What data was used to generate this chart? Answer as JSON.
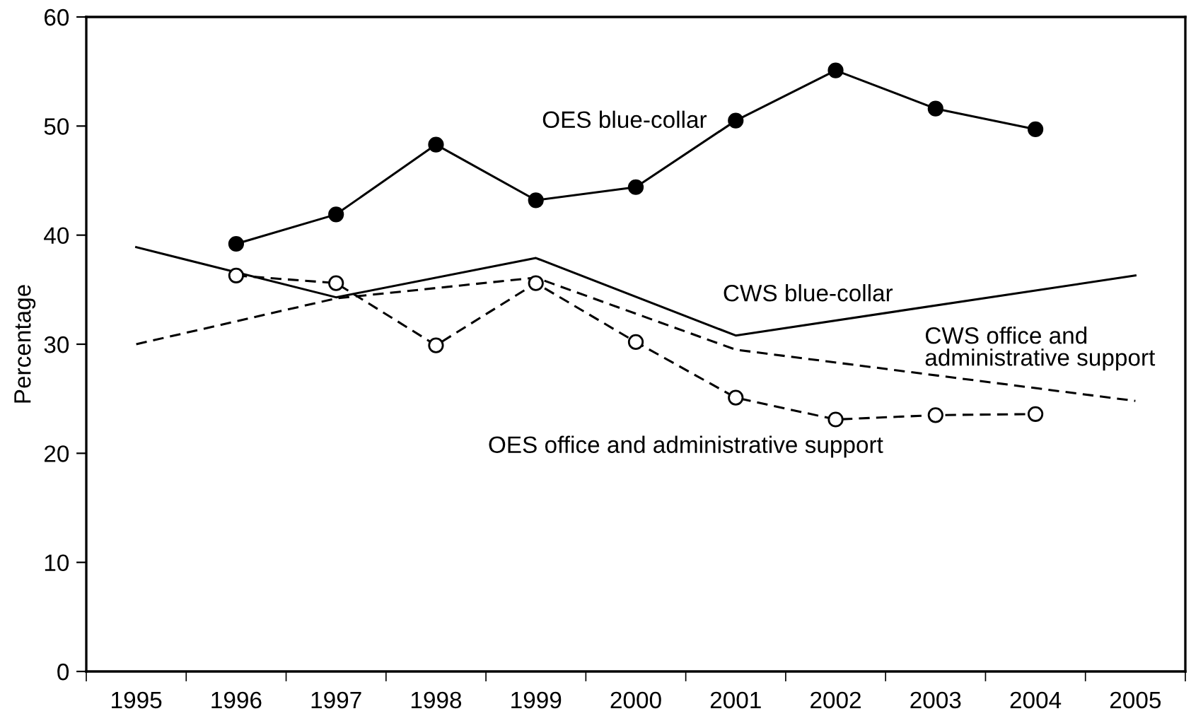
{
  "chart_data": {
    "type": "line",
    "ylabel": "Percentage",
    "xlim": [
      1994.5,
      2005.5
    ],
    "ylim": [
      0,
      60
    ],
    "yticks": [
      0,
      10,
      20,
      30,
      40,
      50,
      60
    ],
    "xticks": [
      {
        "value": 1994.5,
        "label": null
      },
      1995,
      {
        "value": 1995.5,
        "label": null
      },
      1996,
      {
        "value": 1996.5,
        "label": null
      },
      1997,
      {
        "value": 1997.5,
        "label": null
      },
      1998,
      {
        "value": 1998.5,
        "label": null
      },
      1999,
      {
        "value": 1999.5,
        "label": null
      },
      2000,
      {
        "value": 2000.5,
        "label": null
      },
      2001,
      {
        "value": 2001.5,
        "label": null
      },
      2002,
      {
        "value": 2002.5,
        "label": null
      },
      2003,
      {
        "value": 2003.5,
        "label": null
      },
      2004,
      {
        "value": 2004.5,
        "label": null
      },
      2005,
      {
        "value": 2005.5,
        "label": null
      }
    ],
    "grid": false,
    "legend": false,
    "series": [
      {
        "name": "OES blue-collar",
        "color": "#000000",
        "marker": "circle",
        "line_style": "solid",
        "x": [
          1996,
          1997,
          1998,
          1999,
          2000,
          2001,
          2002,
          2003,
          2004
        ],
        "values": [
          39.2,
          41.9,
          48.3,
          43.2,
          44.4,
          50.5,
          55.1,
          51.6,
          49.7
        ]
      },
      {
        "name": "CWS blue-collar",
        "color": "#000000",
        "marker": "none",
        "line_style": "solid",
        "x": [
          1995,
          1997,
          1999,
          2001,
          2005
        ],
        "values": [
          38.9,
          34.3,
          37.9,
          30.8,
          36.3
        ]
      },
      {
        "name": "CWS office and\nadministrative support",
        "color": "#000000",
        "marker": "none",
        "line_style": "dashed",
        "x": [
          1995,
          1997,
          1999,
          2001,
          2005
        ],
        "values": [
          30.0,
          34.2,
          36.1,
          29.5,
          24.8
        ]
      },
      {
        "name": "OES office and administrative support",
        "color": "#000000",
        "marker": "circle",
        "line_style": "dashed",
        "x": [
          1996,
          1997,
          1998,
          1999,
          2000,
          2001,
          2002,
          2003,
          2004
        ],
        "values": [
          36.3,
          35.6,
          29.9,
          35.6,
          30.2,
          25.1,
          23.1,
          23.5,
          23.6
        ]
      }
    ]
  }
}
